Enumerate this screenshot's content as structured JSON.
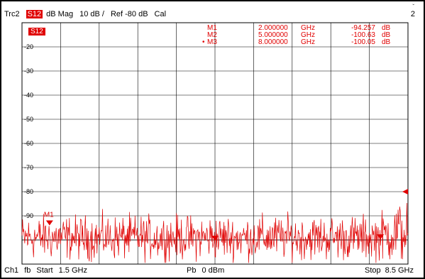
{
  "header": {
    "trace": "Trc2",
    "param": "S12",
    "format": "dB Mag",
    "scale": "10 dB /",
    "reference": "Ref -80 dB",
    "status": "Cal",
    "channel_num": "2"
  },
  "badge": "S12",
  "markers": [
    {
      "name": "M1",
      "freq": "2.000000",
      "unit": "GHz",
      "amp": "-94.257",
      "amp_unit": "dB"
    },
    {
      "name": "M2",
      "freq": "5.000000",
      "unit": "GHz",
      "amp": "-100.63",
      "amp_unit": "dB"
    },
    {
      "name": "M3",
      "freq": "8.000000",
      "unit": "GHz",
      "amp": "-100.05",
      "amp_unit": "dB"
    }
  ],
  "marker_label": "M1",
  "footer": {
    "channel": "Ch1",
    "fb": "fb",
    "start_label": "Start",
    "start": "1.5 GHz",
    "power_label": "Pb",
    "power": "0 dBm",
    "stop_label": "Stop",
    "stop": "8.5 GHz"
  },
  "colors": {
    "trace": "#e00000",
    "grid": "#000000",
    "badge_bg": "#e00000"
  },
  "chart_data": {
    "type": "line",
    "x_unit": "GHz",
    "xlim": [
      1.5,
      8.5
    ],
    "ylim": [
      -110,
      -10
    ],
    "grid": true,
    "y_tick_labels": [
      "-20",
      "-30",
      "-40",
      "-50",
      "-60",
      "-70",
      "-80",
      "-90"
    ],
    "reference_level": -80,
    "reference_line": -100,
    "noise_floor_center": -99,
    "noise_floor_spread": 8,
    "rising_tail_start": 7.9,
    "marker_points": [
      {
        "name": "M1",
        "x": 2.0,
        "y": -94.257
      },
      {
        "name": "M2",
        "x": 5.0,
        "y": -100.63
      },
      {
        "name": "M3",
        "x": 8.0,
        "y": -100.05
      }
    ]
  }
}
